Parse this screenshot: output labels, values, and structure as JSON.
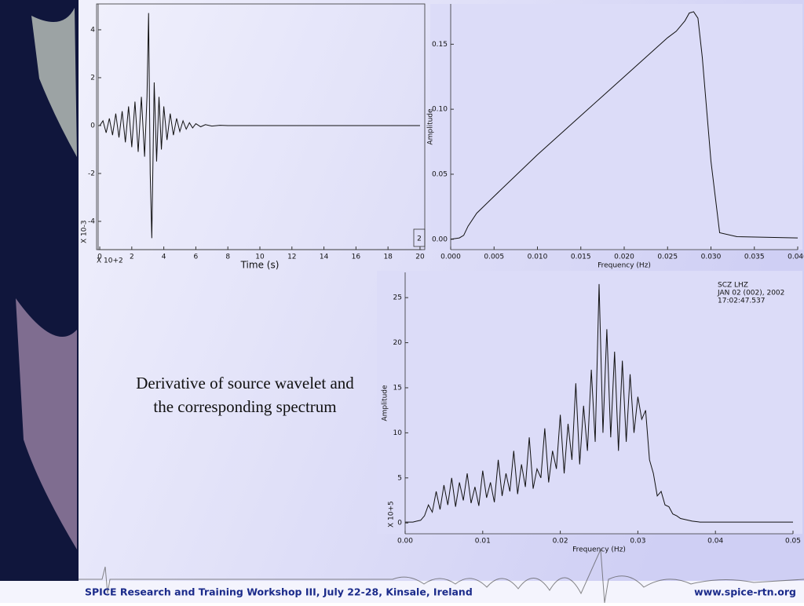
{
  "chart_data": [
    {
      "type": "line",
      "x": [
        0,
        0.2,
        0.4,
        0.6,
        0.8,
        1.0,
        1.2,
        1.4,
        1.6,
        1.8,
        2.0,
        2.2,
        2.4,
        2.6,
        2.8,
        2.95,
        3.05,
        3.15,
        3.25,
        3.4,
        3.55,
        3.7,
        3.85,
        4.0,
        4.2,
        4.4,
        4.6,
        4.8,
        5.0,
        5.2,
        5.4,
        5.6,
        5.8,
        6.0,
        6.3,
        6.6,
        7.0,
        7.5,
        8.0,
        20
      ],
      "values": [
        0,
        0.2,
        -0.3,
        0.3,
        -0.4,
        0.5,
        -0.5,
        0.6,
        -0.7,
        0.8,
        -0.9,
        1.0,
        -1.1,
        1.2,
        -1.3,
        1.2,
        4.7,
        -2.0,
        -4.7,
        1.8,
        -1.5,
        1.2,
        -1.0,
        0.8,
        -0.6,
        0.5,
        -0.4,
        0.3,
        -0.25,
        0.2,
        -0.15,
        0.12,
        -0.1,
        0.08,
        -0.05,
        0.04,
        -0.02,
        0.01,
        0,
        0
      ],
      "color": "#111111",
      "xlim": [
        -0.1,
        20.1
      ],
      "ylim": [
        -5.18,
        5.08
      ],
      "xticks": [
        0,
        2,
        4,
        6,
        8,
        10,
        12,
        14,
        16,
        18,
        20
      ],
      "yticks": [
        -4,
        -2,
        0,
        2,
        4
      ],
      "xlabel": "Time (s)",
      "x_multiplier": "X 10+2",
      "y_multiplier": "X 10-3",
      "panel_label": "2"
    },
    {
      "type": "line",
      "x": [
        0,
        0.001,
        0.0015,
        0.002,
        0.003,
        0.005,
        0.01,
        0.015,
        0.02,
        0.025,
        0.026,
        0.027,
        0.0275,
        0.028,
        0.0285,
        0.029,
        0.03,
        0.031,
        0.033,
        0.04
      ],
      "values": [
        0,
        0.001,
        0.003,
        0.01,
        0.02,
        0.033,
        0.065,
        0.095,
        0.125,
        0.155,
        0.16,
        0.168,
        0.174,
        0.175,
        0.17,
        0.14,
        0.06,
        0.005,
        0.002,
        0.001
      ],
      "color": "#111111",
      "xlim": [
        0,
        0.04
      ],
      "ylim": [
        -0.008,
        0.181
      ],
      "xticks": [
        {
          "value": 0,
          "label": "0.000"
        },
        0.005,
        {
          "value": 0.01,
          "label": "0.010"
        },
        0.015,
        {
          "value": 0.02,
          "label": "0.020"
        },
        0.025,
        {
          "value": 0.03,
          "label": "0.030"
        },
        0.035,
        {
          "value": 0.04,
          "label": "0.040"
        }
      ],
      "yticks": [
        {
          "value": 0,
          "label": "0.00"
        },
        0.05,
        {
          "value": 0.1,
          "label": "0.10"
        },
        0.15
      ],
      "xlabel": "Frequency (Hz)",
      "ylabel": "Amplitude"
    },
    {
      "type": "line",
      "x": [
        0,
        0.0005,
        0.001,
        0.0015,
        0.002,
        0.0025,
        0.003,
        0.0035,
        0.004,
        0.0045,
        0.005,
        0.0055,
        0.006,
        0.0065,
        0.007,
        0.0075,
        0.008,
        0.0085,
        0.009,
        0.0095,
        0.01,
        0.0105,
        0.011,
        0.0115,
        0.012,
        0.0125,
        0.013,
        0.0135,
        0.014,
        0.0145,
        0.015,
        0.0155,
        0.016,
        0.0165,
        0.017,
        0.0175,
        0.018,
        0.0185,
        0.019,
        0.0195,
        0.02,
        0.0205,
        0.021,
        0.0215,
        0.022,
        0.0225,
        0.023,
        0.0235,
        0.024,
        0.0245,
        0.025,
        0.0255,
        0.026,
        0.0265,
        0.027,
        0.0275,
        0.028,
        0.0285,
        0.029,
        0.0295,
        0.03,
        0.0305,
        0.031,
        0.0315,
        0.032,
        0.0325,
        0.033,
        0.0335,
        0.034,
        0.0345,
        0.035,
        0.0355,
        0.036,
        0.037,
        0.038,
        0.04,
        0.05
      ],
      "values": [
        0.1,
        0.1,
        0.1,
        0.2,
        0.3,
        0.8,
        2.0,
        1.2,
        3.5,
        1.5,
        4.2,
        2.0,
        5.0,
        1.8,
        4.5,
        2.5,
        5.5,
        2.2,
        4.0,
        1.9,
        5.8,
        2.8,
        4.5,
        2.3,
        7.0,
        3.0,
        5.5,
        3.5,
        8.0,
        3.2,
        6.5,
        4.0,
        9.5,
        3.8,
        6.0,
        5.0,
        10.5,
        4.5,
        8.0,
        6.0,
        12.0,
        5.5,
        11.0,
        7.0,
        15.5,
        6.5,
        13.0,
        8.0,
        17.0,
        9.0,
        26.5,
        10.0,
        21.5,
        9.5,
        19.0,
        8.0,
        18.0,
        9.0,
        16.5,
        10.0,
        14.0,
        11.5,
        12.5,
        7.0,
        5.5,
        3.0,
        3.5,
        2.0,
        1.8,
        1.0,
        0.8,
        0.5,
        0.4,
        0.2,
        0.1,
        0.1,
        0.1
      ],
      "color": "#111111",
      "xlim": [
        0,
        0.05
      ],
      "ylim": [
        -1.2,
        27.8
      ],
      "xticks": [
        {
          "value": 0,
          "label": "0.00"
        },
        0.01,
        0.02,
        0.03,
        0.04,
        0.05
      ],
      "yticks": [
        0,
        5,
        10,
        15,
        20,
        25
      ],
      "xlabel": "Frequency (Hz)",
      "ylabel": "Amplitude",
      "y_multiplier": "X 10+5",
      "annotation": [
        "SCZ  LHZ",
        "JAN 02 (002), 2002",
        "17:02:47.537"
      ]
    }
  ],
  "slide": {
    "caption": [
      "Derivative of source wavelet and",
      "the corresponding spectrum"
    ],
    "footer_left": "SPICE Research and Training Workshop III, July 22-28, Kinsale, Ireland",
    "footer_right": "www.spice-rtn.org"
  }
}
